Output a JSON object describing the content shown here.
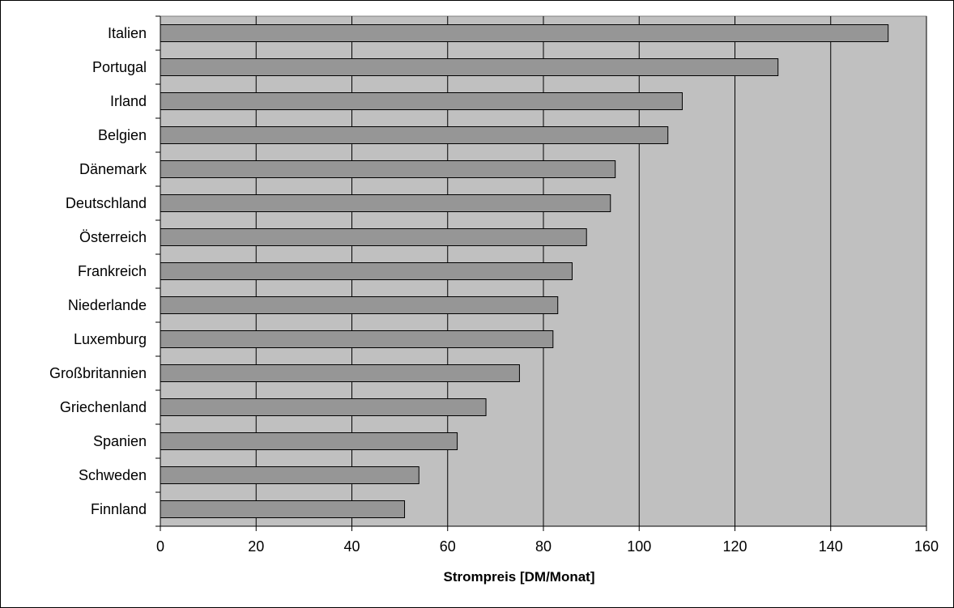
{
  "chart_data": {
    "type": "bar",
    "orientation": "horizontal",
    "categories": [
      "Italien",
      "Portugal",
      "Irland",
      "Belgien",
      "Dänemark",
      "Deutschland",
      "Österreich",
      "Frankreich",
      "Niederlande",
      "Luxemburg",
      "Großbritannien",
      "Griechenland",
      "Spanien",
      "Schweden",
      "Finnland"
    ],
    "values": [
      152,
      129,
      109,
      106,
      95,
      94,
      89,
      86,
      83,
      82,
      75,
      68,
      62,
      54,
      51
    ],
    "title": "",
    "xlabel": "Strompreis [DM/Monat]",
    "ylabel": "",
    "xlim": [
      0,
      160
    ],
    "xticks": [
      0,
      20,
      40,
      60,
      80,
      100,
      120,
      140,
      160
    ],
    "grid": "vertical",
    "legend": "none",
    "colors": {
      "plot_bg": "#c0c0c0",
      "bar_fill": "#969696",
      "bar_stroke": "#000000",
      "grid": "#000000"
    }
  }
}
